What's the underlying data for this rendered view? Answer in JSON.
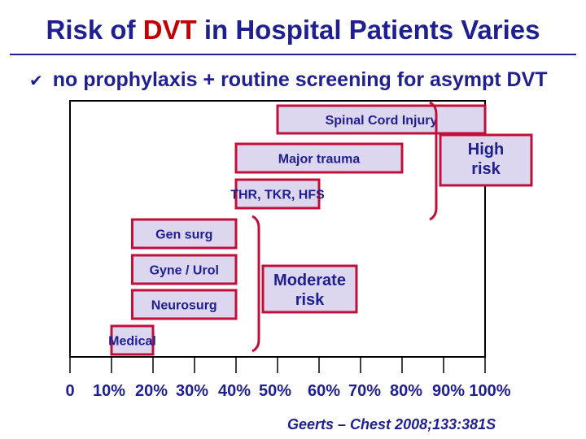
{
  "title": {
    "pre": "Risk of ",
    "highlight": "DVT",
    "post": " in Hospital Patients Varies",
    "highlight_color": "#c00000",
    "color": "#1f1f8f"
  },
  "bullet": {
    "icon": "checkmark-bullet-icon",
    "text": "no prophylaxis + routine screening for asympt DVT"
  },
  "citation": "Geerts – Chest 2008;133:381S",
  "chart_data": {
    "type": "bar",
    "orientation": "horizontal",
    "x_ticks": [
      "0",
      "10%",
      "20%",
      "30%",
      "40%",
      "50%",
      "60%",
      "70%",
      "80%",
      "90%",
      "100%"
    ],
    "xlim": [
      0,
      100
    ],
    "bar_fill": "#dcd6ee",
    "bar_border": "#c0103a",
    "categories": [
      {
        "label": "Spinal Cord Injury",
        "range": [
          50,
          100
        ]
      },
      {
        "label": "Major trauma",
        "range": [
          40,
          80
        ]
      },
      {
        "label": "THR, TKR, HFS",
        "range": [
          40,
          60
        ]
      },
      {
        "label": "Gen surg",
        "range": [
          15,
          40
        ]
      },
      {
        "label": "Gyne / Urol",
        "range": [
          15,
          40
        ]
      },
      {
        "label": "Neurosurg",
        "range": [
          15,
          40
        ]
      },
      {
        "label": "Medical",
        "range": [
          10,
          20
        ]
      }
    ],
    "groups": [
      {
        "label": "High\nrisk",
        "members": [
          "Spinal Cord Injury",
          "Major trauma",
          "THR, TKR, HFS"
        ]
      },
      {
        "label": "Moderate\nrisk",
        "members": [
          "Gen surg",
          "Gyne / Urol",
          "Neurosurg",
          "Medical"
        ]
      }
    ]
  }
}
